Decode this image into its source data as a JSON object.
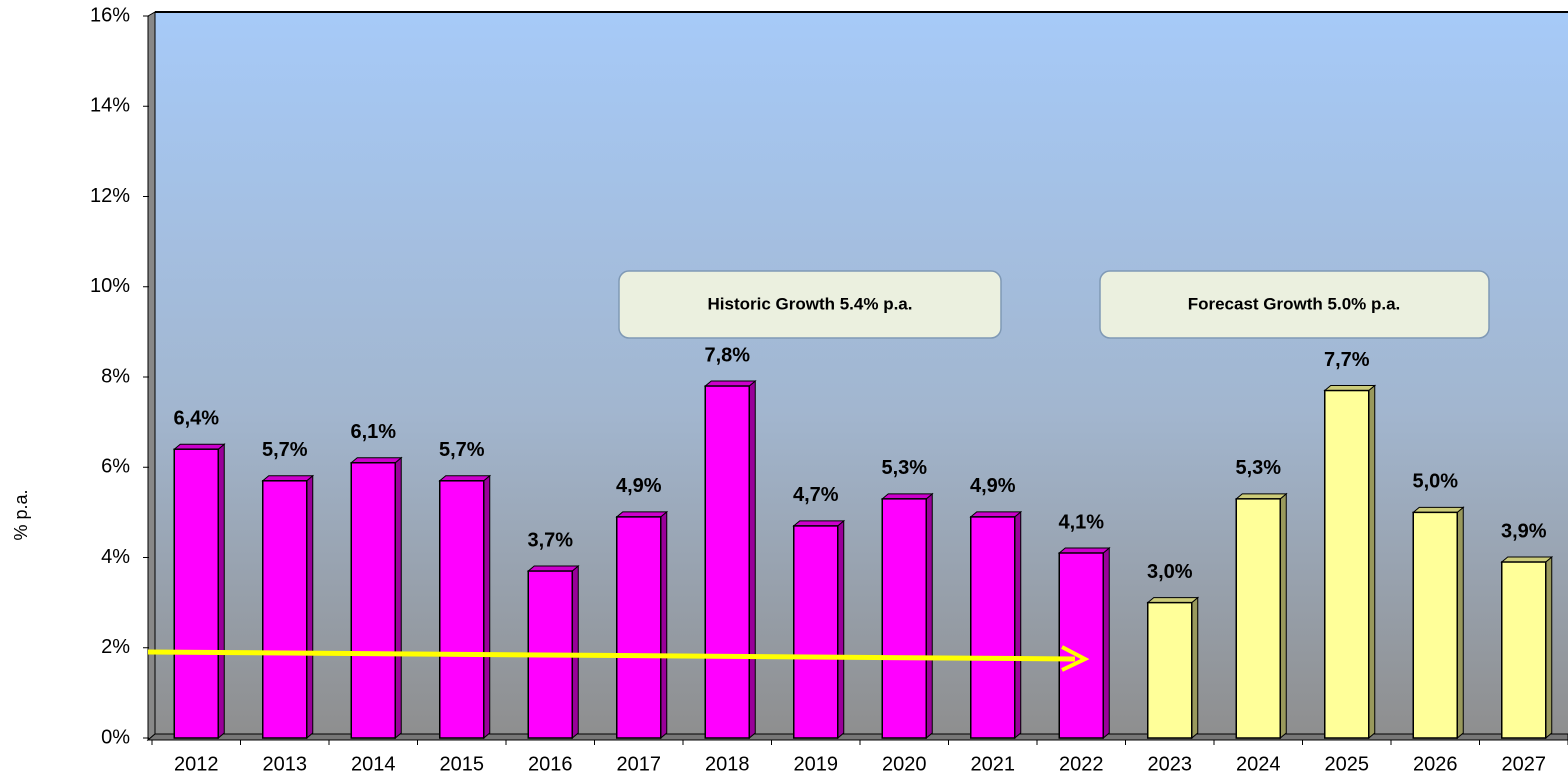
{
  "chart_data": {
    "type": "bar",
    "y_axis_label": "% p.a.",
    "categories": [
      "2012",
      "2013",
      "2014",
      "2015",
      "2016",
      "2017",
      "2018",
      "2019",
      "2020",
      "2021",
      "2022",
      "2023",
      "2024",
      "2025",
      "2026",
      "2027"
    ],
    "values": [
      6.4,
      5.7,
      6.1,
      5.7,
      3.7,
      4.9,
      7.8,
      4.7,
      5.3,
      4.9,
      4.1,
      3.0,
      5.3,
      7.7,
      5.0,
      3.9
    ],
    "value_labels": [
      "6,4%",
      "5,7%",
      "6,1%",
      "5,7%",
      "3,7%",
      "4,9%",
      "7,8%",
      "4,7%",
      "5,3%",
      "4,9%",
      "4,1%",
      "3,0%",
      "5,3%",
      "7,7%",
      "5,0%",
      "3,9%"
    ],
    "colors": [
      "#ff00ff",
      "#ff00ff",
      "#ff00ff",
      "#ff00ff",
      "#ff00ff",
      "#ff00ff",
      "#ff00ff",
      "#ff00ff",
      "#ff00ff",
      "#ff00ff",
      "#ff00ff",
      "#ffff99",
      "#ffff99",
      "#ffff99",
      "#ffff99",
      "#ffff99"
    ],
    "ylim": [
      0,
      16
    ],
    "yticks": [
      {
        "value": 0,
        "label": "0%"
      },
      {
        "value": 2,
        "label": "2%"
      },
      {
        "value": 4,
        "label": "4%"
      },
      {
        "value": 6,
        "label": "6%"
      },
      {
        "value": 8,
        "label": "8%"
      },
      {
        "value": 10,
        "label": "10%"
      },
      {
        "value": 12,
        "label": "12%"
      },
      {
        "value": 14,
        "label": "14%"
      },
      {
        "value": 16,
        "label": "16%"
      }
    ],
    "annotations": [
      "Historic Growth 5.4% p.a.",
      "Forecast Growth 5.0% p.a."
    ]
  }
}
